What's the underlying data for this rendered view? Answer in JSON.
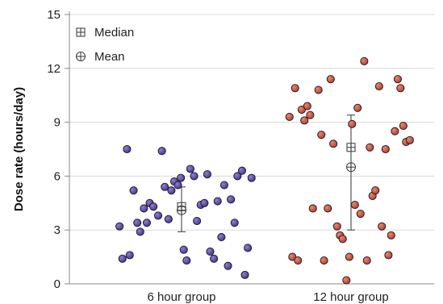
{
  "chart_data": {
    "type": "scatter",
    "title": "",
    "ylabel": "Dose rate (hours/day)",
    "xlabel": "",
    "ylim": [
      0,
      15
    ],
    "yticks": [
      0,
      3,
      6,
      9,
      12,
      15
    ],
    "grid": true,
    "legend_position": "top-left",
    "legend": [
      {
        "label": "Median",
        "symbol": "boxed-plus"
      },
      {
        "label": "Mean",
        "symbol": "circled-plus"
      }
    ],
    "categories": [
      "6 hour group",
      "12 hour group"
    ],
    "series": [
      {
        "category": "6 hour group",
        "color": "#4b3a8c",
        "median": 4.3,
        "mean": 4.1,
        "error_bar": [
          2.9,
          5.4
        ],
        "points": [
          {
            "x": -0.366,
            "y": 3.2
          },
          {
            "x": -0.349,
            "y": 1.4
          },
          {
            "x": -0.322,
            "y": 7.5
          },
          {
            "x": -0.306,
            "y": 1.6
          },
          {
            "x": -0.283,
            "y": 5.2
          },
          {
            "x": -0.261,
            "y": 3.4
          },
          {
            "x": -0.244,
            "y": 2.9
          },
          {
            "x": -0.222,
            "y": 4.2
          },
          {
            "x": -0.205,
            "y": 3.4
          },
          {
            "x": -0.188,
            "y": 4.5
          },
          {
            "x": -0.166,
            "y": 4.3
          },
          {
            "x": -0.138,
            "y": 3.8
          },
          {
            "x": -0.116,
            "y": 7.4
          },
          {
            "x": -0.099,
            "y": 5.4
          },
          {
            "x": -0.077,
            "y": 3.6
          },
          {
            "x": -0.06,
            "y": 5.2
          },
          {
            "x": -0.043,
            "y": 5.7
          },
          {
            "x": -0.021,
            "y": 5.5
          },
          {
            "x": -0.004,
            "y": 5.9
          },
          {
            "x": 0.013,
            "y": 1.9
          },
          {
            "x": 0.03,
            "y": 1.3
          },
          {
            "x": 0.052,
            "y": 6.4
          },
          {
            "x": 0.074,
            "y": 6.0
          },
          {
            "x": 0.091,
            "y": 3.5
          },
          {
            "x": 0.113,
            "y": 4.4
          },
          {
            "x": 0.135,
            "y": 4.5
          },
          {
            "x": 0.152,
            "y": 6.1
          },
          {
            "x": 0.169,
            "y": 1.8
          },
          {
            "x": 0.191,
            "y": 1.4
          },
          {
            "x": 0.213,
            "y": 4.6
          },
          {
            "x": 0.235,
            "y": 2.6
          },
          {
            "x": 0.252,
            "y": 5.5
          },
          {
            "x": 0.274,
            "y": 1.0
          },
          {
            "x": 0.291,
            "y": 4.7
          },
          {
            "x": 0.313,
            "y": 3.4
          },
          {
            "x": 0.33,
            "y": 6.0
          },
          {
            "x": 0.357,
            "y": 6.3
          },
          {
            "x": 0.374,
            "y": 0.5
          },
          {
            "x": 0.391,
            "y": 2.0
          },
          {
            "x": 0.413,
            "y": 5.9
          }
        ]
      },
      {
        "category": "12 hour group",
        "color": "#b5432b",
        "median": 7.6,
        "mean": 6.5,
        "error_bar": [
          3.0,
          9.4
        ],
        "points": [
          {
            "x": -0.363,
            "y": 9.3
          },
          {
            "x": -0.346,
            "y": 1.5
          },
          {
            "x": -0.33,
            "y": 10.9
          },
          {
            "x": -0.313,
            "y": 1.3
          },
          {
            "x": -0.291,
            "y": 9.7
          },
          {
            "x": -0.275,
            "y": 9.1
          },
          {
            "x": -0.258,
            "y": 9.9
          },
          {
            "x": -0.241,
            "y": 9.4
          },
          {
            "x": -0.225,
            "y": 4.2
          },
          {
            "x": -0.192,
            "y": 10.8
          },
          {
            "x": -0.175,
            "y": 8.3
          },
          {
            "x": -0.159,
            "y": 1.3
          },
          {
            "x": -0.137,
            "y": 4.2
          },
          {
            "x": -0.12,
            "y": 11.4
          },
          {
            "x": -0.104,
            "y": 7.8
          },
          {
            "x": -0.082,
            "y": 3.2
          },
          {
            "x": -0.065,
            "y": 2.7
          },
          {
            "x": -0.049,
            "y": 2.5
          },
          {
            "x": -0.027,
            "y": 0.2
          },
          {
            "x": -0.01,
            "y": 1.5
          },
          {
            "x": 0.006,
            "y": 8.9
          },
          {
            "x": 0.023,
            "y": 4.4
          },
          {
            "x": 0.039,
            "y": 9.8
          },
          {
            "x": 0.056,
            "y": 3.9
          },
          {
            "x": 0.078,
            "y": 12.4
          },
          {
            "x": 0.094,
            "y": 1.3
          },
          {
            "x": 0.111,
            "y": 7.6
          },
          {
            "x": 0.127,
            "y": 4.9
          },
          {
            "x": 0.144,
            "y": 5.2
          },
          {
            "x": 0.166,
            "y": 11.0
          },
          {
            "x": 0.182,
            "y": 3.2
          },
          {
            "x": 0.204,
            "y": 7.5
          },
          {
            "x": 0.221,
            "y": 1.6
          },
          {
            "x": 0.237,
            "y": 2.7
          },
          {
            "x": 0.259,
            "y": 8.5
          },
          {
            "x": 0.276,
            "y": 11.4
          },
          {
            "x": 0.292,
            "y": 10.9
          },
          {
            "x": 0.309,
            "y": 8.8
          },
          {
            "x": 0.325,
            "y": 7.9
          },
          {
            "x": 0.347,
            "y": 8.0
          }
        ]
      }
    ]
  }
}
